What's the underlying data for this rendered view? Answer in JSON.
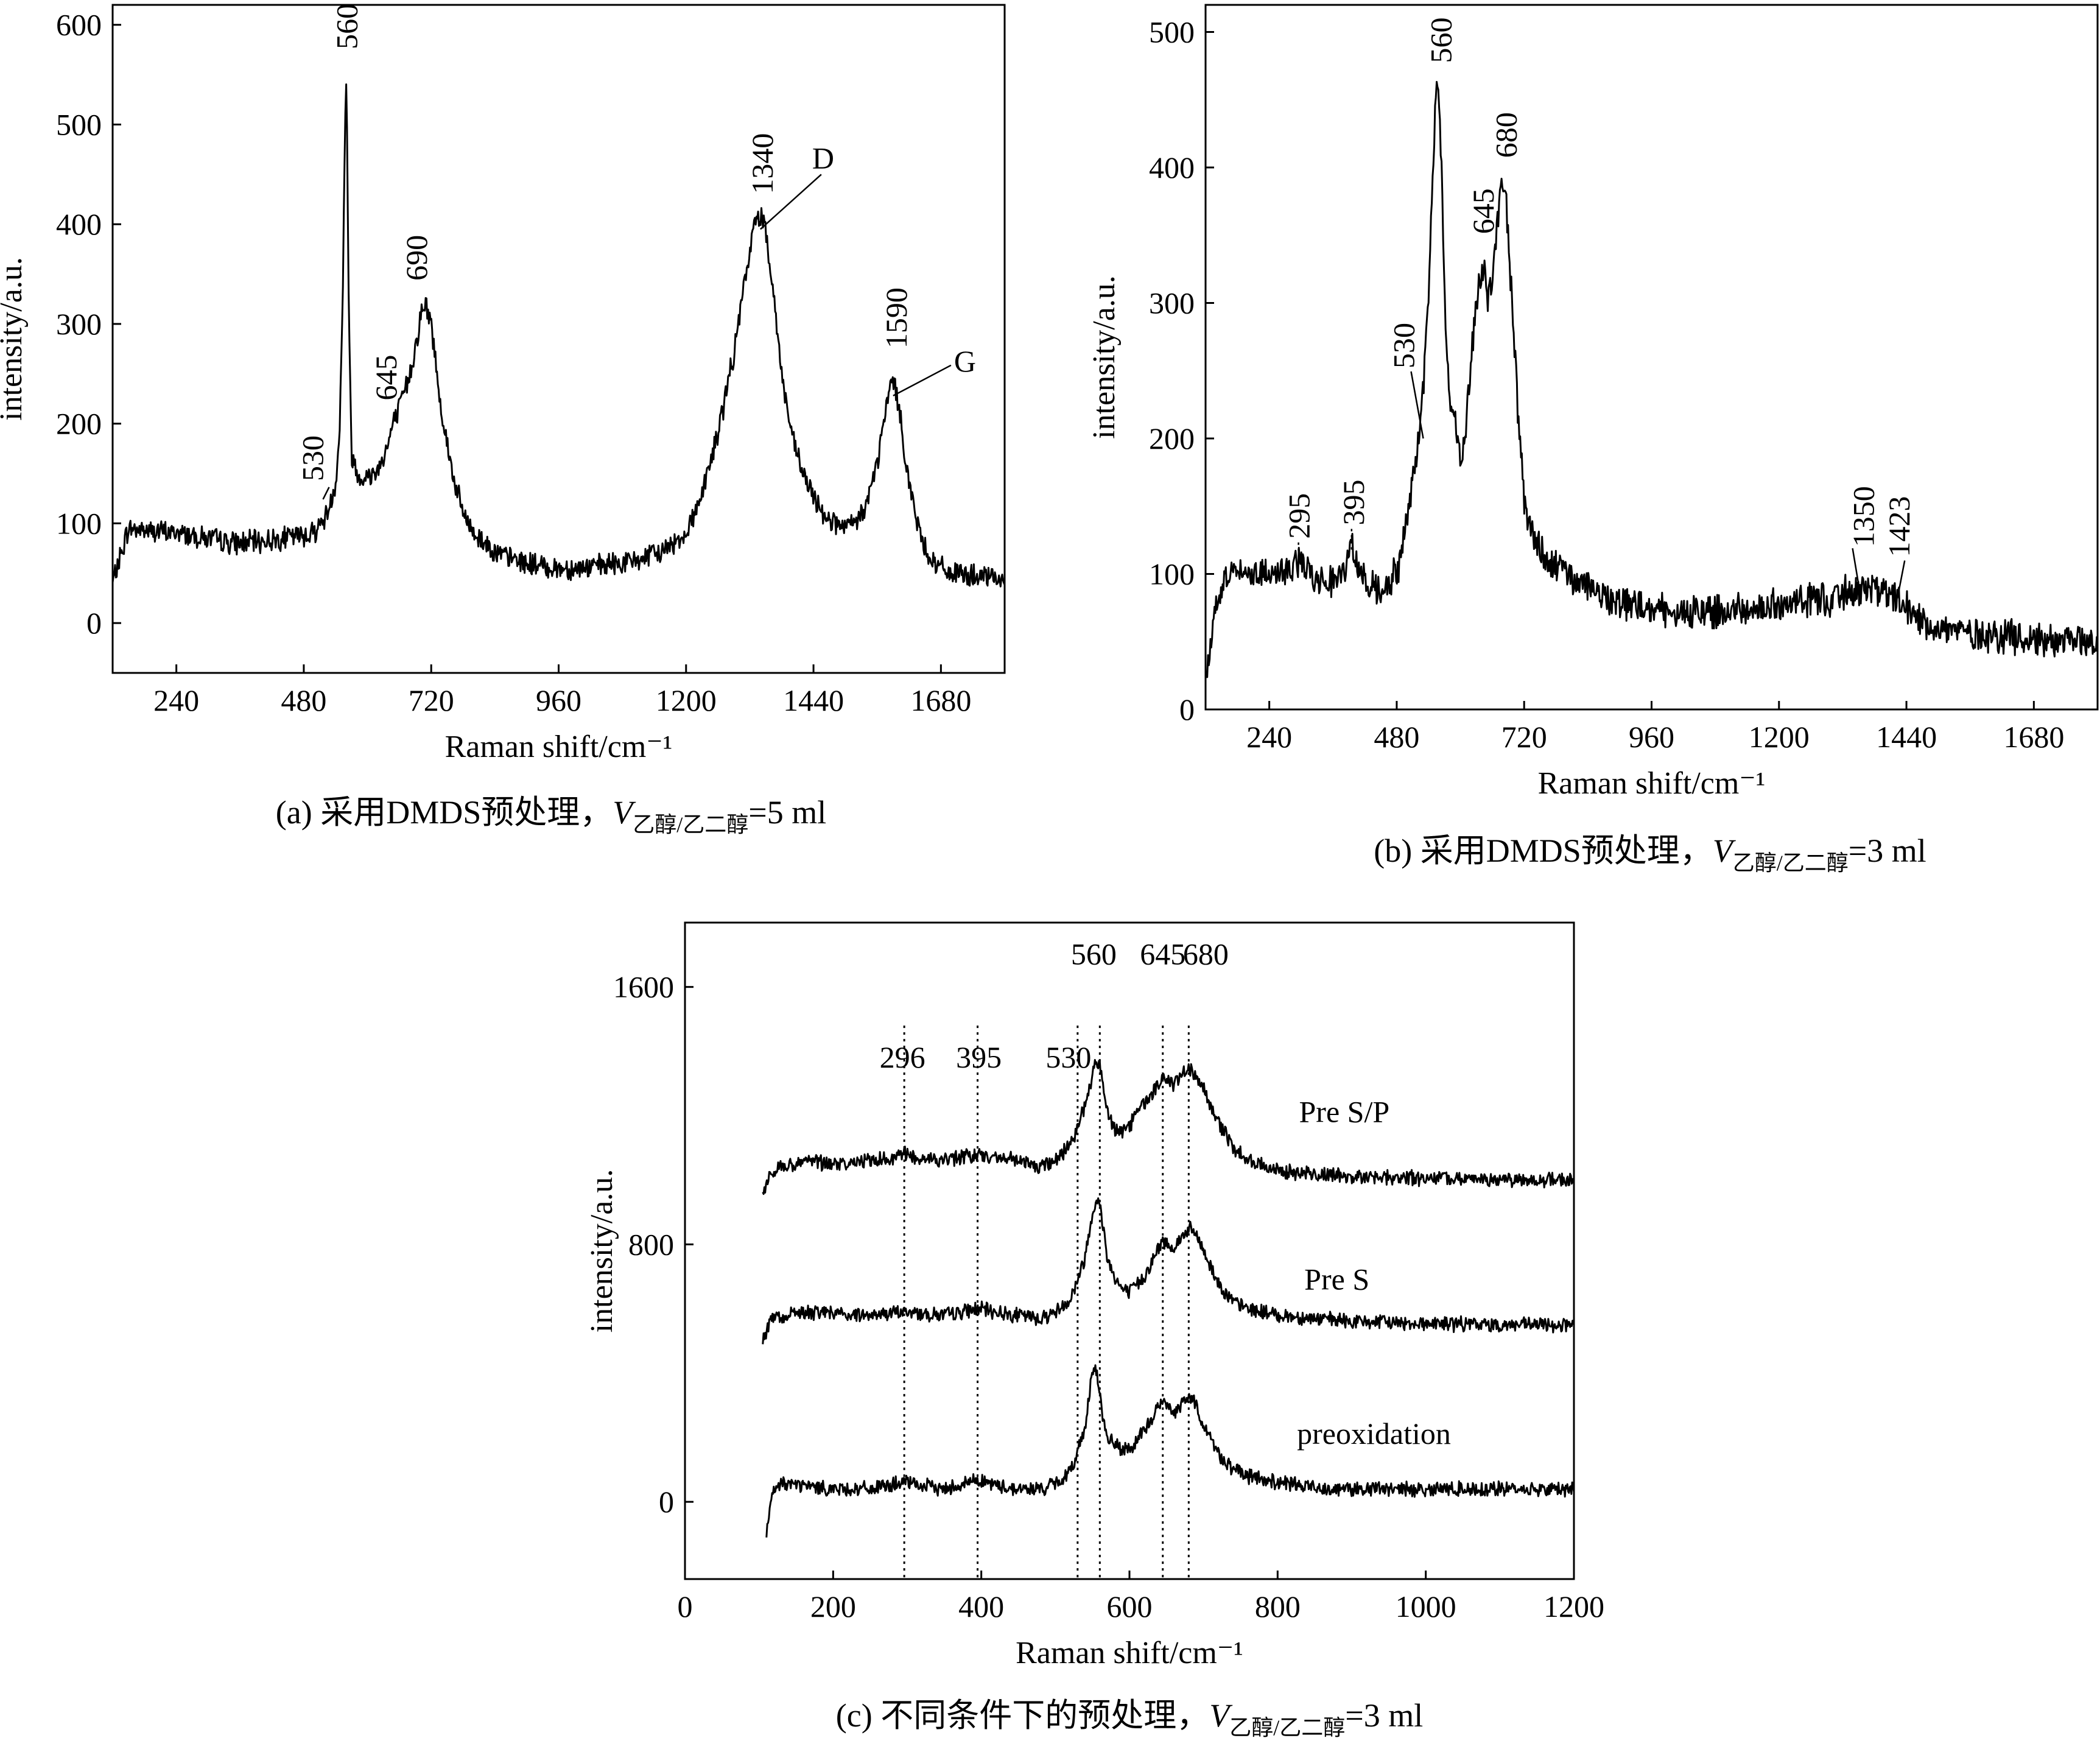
{
  "chart_data": [
    {
      "id": "a",
      "type": "line",
      "caption_prefix": "(a) 采用DMDS预处理，",
      "caption_var": "V",
      "caption_sub": "乙醇/乙二醇",
      "caption_suffix": "=5 ml",
      "xlabel": "Raman shift/cm⁻¹",
      "ylabel": "intensity/a.u.",
      "xlim": [
        120,
        1800
      ],
      "ylim": [
        -50,
        620
      ],
      "xticks": [
        240,
        480,
        720,
        960,
        1200,
        1440,
        1680
      ],
      "yticks": [
        0,
        100,
        200,
        300,
        400,
        500,
        600
      ],
      "series": [
        {
          "name": "spectrum",
          "x": [
            120,
            150,
            200,
            250,
            300,
            350,
            400,
            450,
            480,
            500,
            520,
            530,
            540,
            548,
            553,
            556,
            558,
            560,
            562,
            565,
            570,
            580,
            600,
            620,
            640,
            645,
            660,
            680,
            695,
            700,
            710,
            720,
            740,
            760,
            780,
            800,
            850,
            900,
            950,
            1000,
            1050,
            1100,
            1150,
            1200,
            1230,
            1260,
            1290,
            1310,
            1325,
            1333,
            1340,
            1348,
            1360,
            1380,
            1400,
            1420,
            1440,
            1460,
            1480,
            1500,
            1520,
            1540,
            1560,
            1575,
            1585,
            1590,
            1595,
            1605,
            1620,
            1640,
            1660,
            1680,
            1700,
            1730,
            1760,
            1800
          ],
          "y": [
            40,
            95,
            92,
            90,
            85,
            80,
            82,
            86,
            88,
            92,
            105,
            120,
            140,
            200,
            320,
            430,
            510,
            545,
            470,
            300,
            170,
            150,
            145,
            155,
            180,
            195,
            215,
            250,
            290,
            310,
            318,
            300,
            210,
            150,
            110,
            90,
            68,
            60,
            55,
            55,
            58,
            62,
            70,
            90,
            130,
            190,
            270,
            340,
            390,
            405,
            410,
            400,
            355,
            250,
            185,
            150,
            125,
            110,
            100,
            95,
            100,
            120,
            160,
            210,
            238,
            245,
            235,
            200,
            140,
            90,
            65,
            55,
            50,
            48,
            45,
            45
          ]
        }
      ],
      "annotations": [
        {
          "label": "530",
          "x": 530,
          "y": 118
        },
        {
          "label": "560",
          "x": 560,
          "y": 548
        },
        {
          "label": "645",
          "x": 645,
          "y": 205
        },
        {
          "label": "690",
          "x": 700,
          "y": 322
        },
        {
          "label": "1340",
          "x": 1340,
          "y": 412
        },
        {
          "label": "1590",
          "x": 1590,
          "y": 248
        },
        {
          "label": "D",
          "x": 1340,
          "y": 395
        },
        {
          "label": "G",
          "x": 1590,
          "y": 228
        }
      ]
    },
    {
      "id": "b",
      "type": "line",
      "caption_prefix": "(b) 采用DMDS预处理，",
      "caption_var": "V",
      "caption_sub": "乙醇/乙二醇",
      "caption_suffix": "=3 ml",
      "xlabel": "Raman shift/cm⁻¹",
      "ylabel": "intensity/a.u.",
      "xlim": [
        120,
        1800
      ],
      "ylim": [
        0,
        520
      ],
      "xticks": [
        240,
        480,
        720,
        960,
        1200,
        1440,
        1680
      ],
      "yticks": [
        0,
        100,
        200,
        300,
        400,
        500
      ],
      "series": [
        {
          "name": "spectrum",
          "x": [
            120,
            140,
            160,
            200,
            250,
            290,
            300,
            320,
            350,
            380,
            395,
            410,
            450,
            480,
            500,
            520,
            530,
            540,
            550,
            555,
            560,
            565,
            570,
            580,
            590,
            600,
            610,
            620,
            630,
            640,
            645,
            650,
            660,
            670,
            675,
            680,
            685,
            690,
            700,
            710,
            720,
            740,
            760,
            800,
            850,
            900,
            960,
            1000,
            1100,
            1200,
            1300,
            1350,
            1380,
            1423,
            1450,
            1500,
            1600,
            1700,
            1800
          ],
          "y": [
            20,
            80,
            100,
            102,
            100,
            105,
            110,
            100,
            95,
            100,
            118,
            100,
            88,
            100,
            140,
            200,
            235,
            300,
            420,
            460,
            450,
            400,
            300,
            230,
            215,
            185,
            200,
            260,
            300,
            325,
            330,
            300,
            320,
            360,
            380,
            388,
            380,
            350,
            280,
            210,
            150,
            125,
            110,
            100,
            88,
            80,
            75,
            72,
            72,
            78,
            82,
            90,
            88,
            80,
            70,
            60,
            55,
            52,
            50
          ]
        }
      ],
      "annotations": [
        {
          "label": "295",
          "x": 295,
          "y": 108
        },
        {
          "label": "395",
          "x": 395,
          "y": 118
        },
        {
          "label": "530",
          "x": 530,
          "y": 200
        },
        {
          "label": "560",
          "x": 560,
          "y": 460
        },
        {
          "label": "645",
          "x": 645,
          "y": 332
        },
        {
          "label": "680",
          "x": 680,
          "y": 390
        },
        {
          "label": "1350",
          "x": 1350,
          "y": 92
        },
        {
          "label": "1423",
          "x": 1423,
          "y": 82
        }
      ]
    },
    {
      "id": "c",
      "type": "line",
      "caption_prefix": "(c) 不同条件下的预处理，",
      "caption_var": "V",
      "caption_sub": "乙醇/乙二醇",
      "caption_suffix": "=3 ml",
      "xlabel": "Raman shift/cm⁻¹",
      "ylabel": "intensity/a.u.",
      "xlim": [
        0,
        1200
      ],
      "ylim": [
        -240,
        1800
      ],
      "xticks": [
        0,
        200,
        400,
        600,
        800,
        1000,
        1200
      ],
      "yticks": [
        0,
        800,
        1600
      ],
      "reference_lines": [
        296,
        395,
        530,
        560,
        645,
        680
      ],
      "series": [
        {
          "name": "Pre S/P",
          "x": [
            105,
            115,
            130,
            160,
            200,
            250,
            296,
            320,
            350,
            395,
            420,
            450,
            480,
            500,
            520,
            530,
            540,
            550,
            555,
            560,
            565,
            570,
            580,
            590,
            600,
            620,
            640,
            645,
            660,
            670,
            680,
            690,
            700,
            720,
            740,
            760,
            800,
            850,
            900,
            1000,
            1100,
            1200
          ],
          "y": [
            950,
            1020,
            1040,
            1060,
            1050,
            1060,
            1080,
            1070,
            1060,
            1080,
            1070,
            1060,
            1040,
            1060,
            1110,
            1160,
            1230,
            1330,
            1370,
            1360,
            1300,
            1220,
            1160,
            1150,
            1170,
            1240,
            1300,
            1310,
            1300,
            1320,
            1350,
            1330,
            1280,
            1180,
            1100,
            1060,
            1030,
            1020,
            1010,
            1005,
            1000,
            1000
          ]
        },
        {
          "name": "Pre S",
          "x": [
            105,
            115,
            130,
            160,
            200,
            250,
            296,
            320,
            350,
            395,
            420,
            450,
            480,
            500,
            520,
            530,
            540,
            550,
            555,
            560,
            565,
            570,
            580,
            590,
            600,
            620,
            640,
            645,
            660,
            670,
            680,
            690,
            700,
            720,
            740,
            760,
            800,
            850,
            900,
            1000,
            1100,
            1200
          ],
          "y": [
            500,
            560,
            580,
            590,
            585,
            580,
            590,
            585,
            580,
            600,
            590,
            580,
            570,
            590,
            630,
            690,
            760,
            900,
            940,
            920,
            850,
            760,
            700,
            660,
            650,
            700,
            790,
            810,
            790,
            820,
            850,
            830,
            780,
            680,
            620,
            600,
            580,
            570,
            560,
            555,
            550,
            550
          ]
        },
        {
          "name": "preoxidation",
          "x": [
            110,
            118,
            130,
            160,
            200,
            250,
            296,
            320,
            350,
            395,
            420,
            450,
            480,
            500,
            520,
            530,
            540,
            548,
            553,
            556,
            560,
            565,
            570,
            580,
            590,
            600,
            620,
            640,
            645,
            660,
            670,
            680,
            690,
            700,
            720,
            740,
            760,
            800,
            850,
            900,
            1000,
            1100,
            1200
          ],
          "y": [
            -100,
            20,
            60,
            50,
            40,
            40,
            60,
            50,
            40,
            70,
            50,
            40,
            40,
            55,
            90,
            160,
            230,
            380,
            420,
            400,
            340,
            240,
            200,
            180,
            160,
            160,
            220,
            300,
            310,
            280,
            300,
            330,
            300,
            240,
            150,
            100,
            80,
            60,
            45,
            40,
            40,
            40,
            40
          ]
        }
      ],
      "annotations": [
        {
          "label": "296",
          "x": 296,
          "y": 1350
        },
        {
          "label": "395",
          "x": 395,
          "y": 1350
        },
        {
          "label": "530",
          "x": 530,
          "y": 1350
        },
        {
          "label": "560",
          "x": 560,
          "y": 1670
        },
        {
          "label": "645",
          "x": 645,
          "y": 1670
        },
        {
          "label": "680",
          "x": 680,
          "y": 1670
        }
      ],
      "series_labels": [
        {
          "label": "Pre S/P",
          "x": 890,
          "y": 1180
        },
        {
          "label": "Pre S",
          "x": 880,
          "y": 660
        },
        {
          "label": "preoxidation",
          "x": 930,
          "y": 180
        }
      ]
    }
  ]
}
